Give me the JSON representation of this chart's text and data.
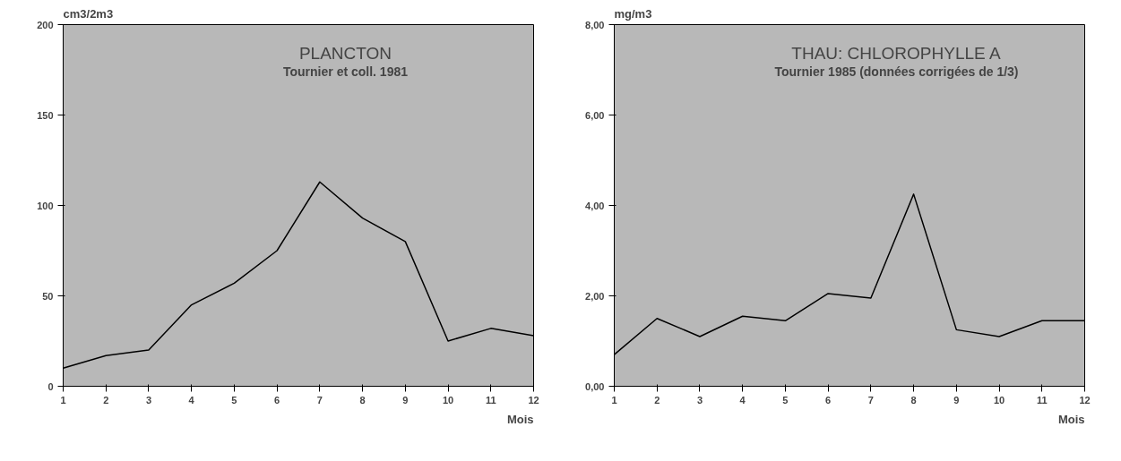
{
  "chart_data": [
    {
      "type": "line",
      "title": "PLANCTON",
      "subtitle": "Tournier et coll. 1981",
      "ylabel": "cm3/2m3",
      "xlabel": "Mois",
      "x": [
        1,
        2,
        3,
        4,
        5,
        6,
        7,
        8,
        9,
        10,
        11,
        12
      ],
      "series": [
        {
          "color": "#000000",
          "values": [
            10,
            17,
            20,
            45,
            57,
            75,
            113,
            93,
            80,
            25,
            32,
            28
          ]
        }
      ],
      "xlim": [
        1,
        12
      ],
      "ylim": [
        0,
        200
      ],
      "xticks": [
        1,
        2,
        3,
        4,
        5,
        6,
        7,
        8,
        9,
        10,
        11,
        12
      ],
      "yticks": [
        0,
        50,
        100,
        150,
        200
      ]
    },
    {
      "type": "line",
      "title": "THAU: CHLOROPHYLLE A",
      "subtitle": "Tournier 1985 (données corrigées de 1/3)",
      "ylabel": "mg/m3",
      "xlabel": "Mois",
      "x": [
        1,
        2,
        3,
        4,
        5,
        6,
        7,
        8,
        9,
        10,
        11,
        12
      ],
      "series": [
        {
          "color": "#000000",
          "values": [
            0.7,
            1.5,
            1.1,
            1.55,
            1.45,
            2.05,
            1.95,
            4.25,
            1.25,
            1.1,
            1.45,
            1.45
          ]
        }
      ],
      "xlim": [
        1,
        12
      ],
      "ylim": [
        0,
        8
      ],
      "xticks": [
        1,
        2,
        3,
        4,
        5,
        6,
        7,
        8,
        9,
        10,
        11,
        12
      ],
      "yticks": [
        {
          "value": 0,
          "label": "0,00"
        },
        {
          "value": 2,
          "label": "2,00"
        },
        {
          "value": 4,
          "label": "4,00"
        },
        {
          "value": 6,
          "label": "6,00"
        },
        {
          "value": 8,
          "label": "8,00"
        }
      ]
    }
  ]
}
